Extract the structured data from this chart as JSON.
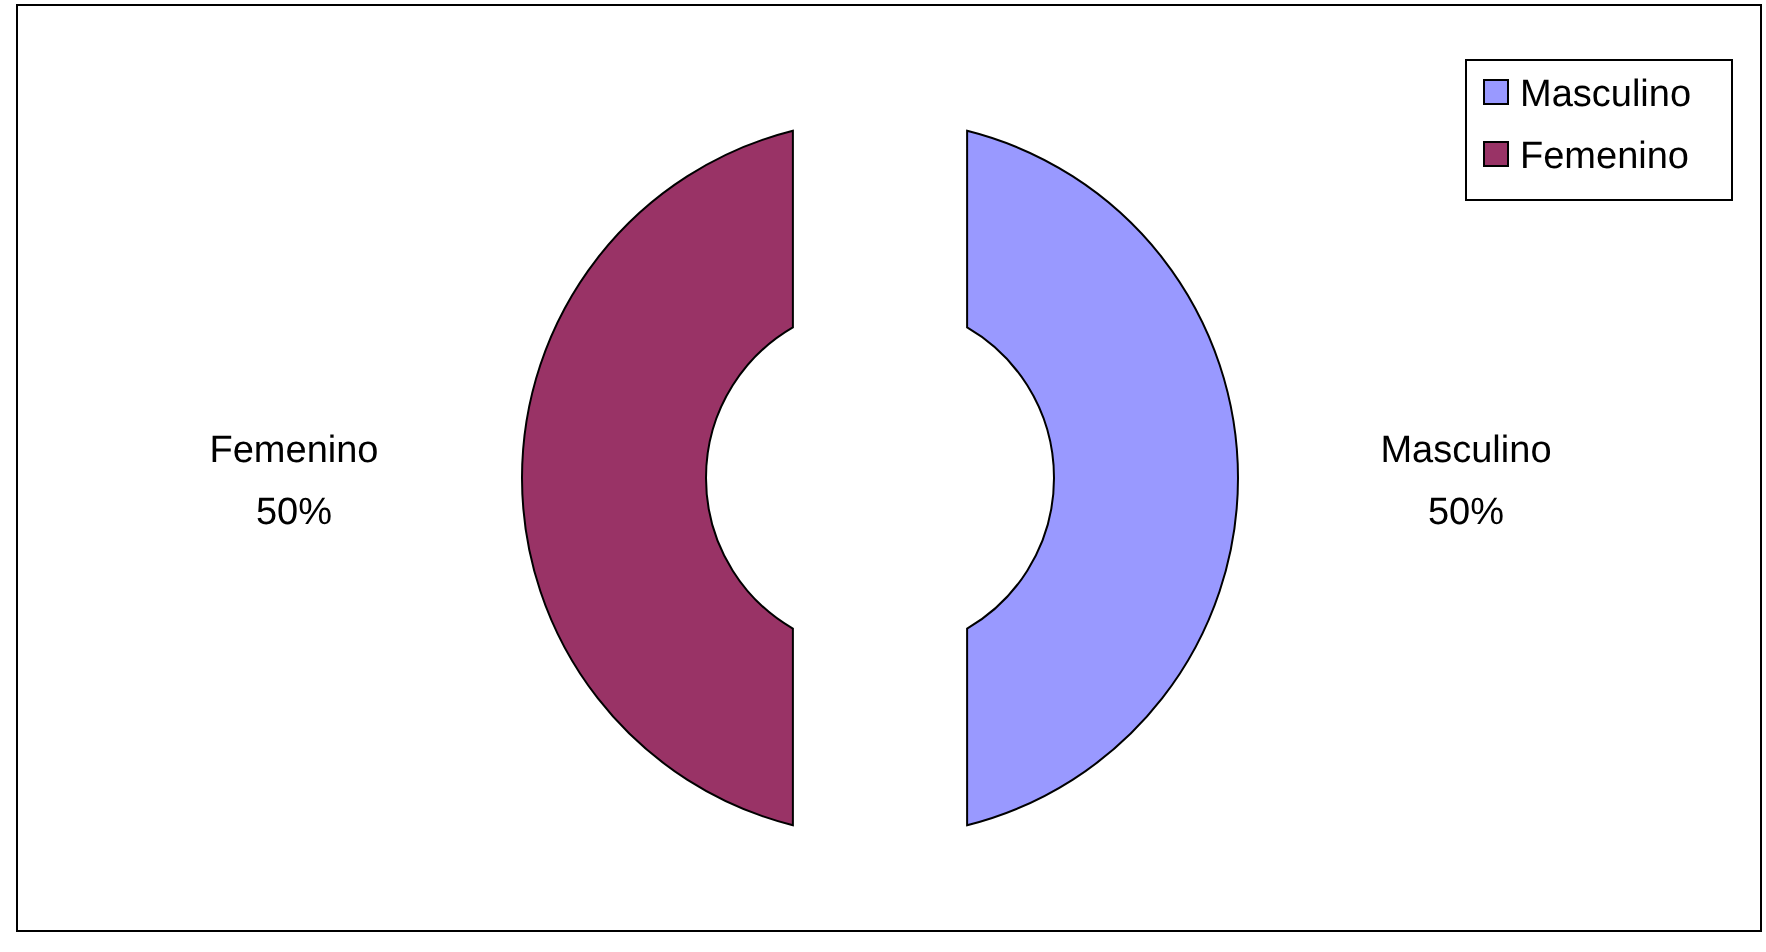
{
  "chart_data": {
    "type": "donut",
    "categories": [
      "Masculino",
      "Femenino"
    ],
    "values": [
      50,
      50
    ],
    "colors": [
      "#9999ff",
      "#993366"
    ],
    "data_labels": true,
    "value_labels": [
      "50%",
      "50%"
    ],
    "legend": "top right"
  }
}
